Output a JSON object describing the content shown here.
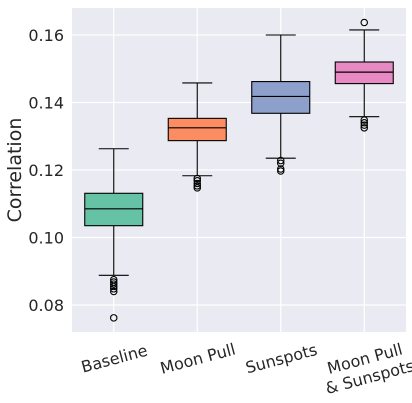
{
  "chart_data": {
    "type": "box",
    "title": "",
    "xlabel": "",
    "ylabel": "Correlation",
    "ylim": [
      0.072,
      0.168
    ],
    "yticks": [
      "0.08",
      "0.10",
      "0.12",
      "0.14",
      "0.16"
    ],
    "ytick_values": [
      0.08,
      0.1,
      0.12,
      0.14,
      0.16
    ],
    "grid": true,
    "background": "#eaeaf2",
    "categories": [
      [
        "Baseline"
      ],
      [
        "Moon Pull"
      ],
      [
        "Sunspots"
      ],
      [
        "Moon Pull",
        "& Sunspots"
      ]
    ],
    "series": [
      {
        "color": "#66c2a5",
        "whisker_low": 0.0888,
        "q1": 0.1035,
        "median": 0.1085,
        "q3": 0.1131,
        "whisker_high": 0.1263,
        "outliers": [
          0.0875,
          0.0868,
          0.0862,
          0.0855,
          0.0848,
          0.084,
          0.0762
        ]
      },
      {
        "color": "#fc8d62",
        "whisker_low": 0.1183,
        "q1": 0.1287,
        "median": 0.1325,
        "q3": 0.1353,
        "whisker_high": 0.1458,
        "outliers": [
          0.1175,
          0.1168,
          0.116,
          0.1153,
          0.1147
        ]
      },
      {
        "color": "#8da0cb",
        "whisker_low": 0.1235,
        "q1": 0.1368,
        "median": 0.1418,
        "q3": 0.1462,
        "whisker_high": 0.16,
        "outliers": [
          0.1228,
          0.122,
          0.1203,
          0.1197
        ]
      },
      {
        "color": "#e78ac3",
        "whisker_low": 0.1358,
        "q1": 0.1456,
        "median": 0.149,
        "q3": 0.152,
        "whisker_high": 0.1615,
        "outliers": [
          0.1348,
          0.134,
          0.1333,
          0.1325,
          0.1637
        ]
      }
    ]
  }
}
